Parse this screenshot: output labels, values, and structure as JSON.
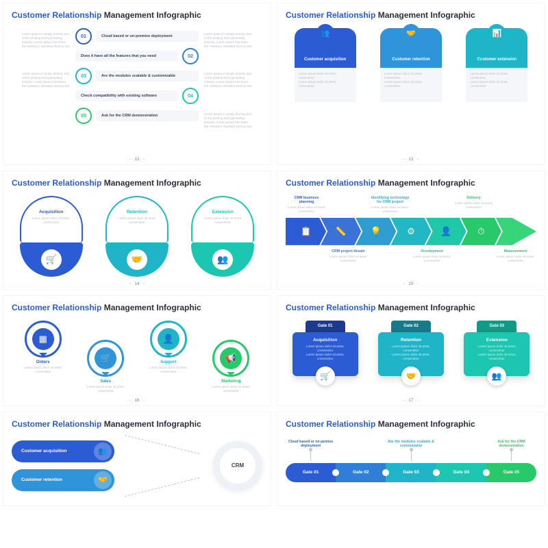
{
  "title": {
    "accent": "Customer Relationship",
    "rest": " Management Infographic"
  },
  "dummy_short": "Lorem ipsum dolor sit amet, consectetur",
  "dummy_long": "Lorem ipsum is simply dummy text of the printing and typesetting industry. Lorem Ipsum has been the industry's standard dummy text",
  "colors": {
    "c1": "#2b5cd4",
    "c2": "#2f7fd9",
    "c3": "#1fb5c9",
    "c4": "#1cc6b0",
    "c5": "#27c96a"
  },
  "s12": {
    "page": "12",
    "items": [
      {
        "num": "01",
        "label": "Cloud based or on-premise deployment",
        "color": "#2b5cd4"
      },
      {
        "num": "02",
        "label": "Does it have all the features that you need",
        "color": "#2f7fd9"
      },
      {
        "num": "03",
        "label": "Are the modules scalable & customizable",
        "color": "#1fb5c9"
      },
      {
        "num": "04",
        "label": "Check compatibility with existing software",
        "color": "#1cc6b0"
      },
      {
        "num": "05",
        "label": "Ask for the CRM demonstration",
        "color": "#27c96a"
      }
    ]
  },
  "s13": {
    "page": "13",
    "cards": [
      {
        "label": "Customer acquisition",
        "color": "#2b5cd4",
        "icon": "👥"
      },
      {
        "label": "Customer retention",
        "color": "#2f94d9",
        "icon": "🤝"
      },
      {
        "label": "Customer extension",
        "color": "#1fb5c9",
        "icon": "📊"
      }
    ]
  },
  "s14": {
    "page": "14",
    "cards": [
      {
        "label": "Acquisition",
        "color": "#2b5cd4",
        "icon": "🛒"
      },
      {
        "label": "Retention",
        "color": "#1fb5c9",
        "icon": "🤝"
      },
      {
        "label": "Extension",
        "color": "#1cc6b0",
        "icon": "👥"
      }
    ]
  },
  "s15": {
    "page": "15",
    "top": [
      {
        "label": "CRM business planning",
        "color": "#2b5cd4"
      },
      {
        "label": "Identifying technology for CRM project",
        "color": "#1fb5c9"
      },
      {
        "label": "Delivery",
        "color": "#27c96a"
      }
    ],
    "bottom": [
      {
        "label": "CRM project desain",
        "color": "#2f7fd9"
      },
      {
        "label": "Development",
        "color": "#1cc6b0"
      },
      {
        "label": "Measurement",
        "color": "#27c96a"
      }
    ],
    "segs": [
      {
        "color": "#2b5cd4",
        "icon": "📋"
      },
      {
        "color": "#3a72d8",
        "icon": "📏"
      },
      {
        "color": "#2f9dd0",
        "icon": "💡"
      },
      {
        "color": "#22b8c3",
        "icon": "⚙"
      },
      {
        "color": "#1fc9a8",
        "icon": "👤"
      },
      {
        "color": "#27c96a",
        "icon": "⏱"
      }
    ],
    "head_color": "#38d47a"
  },
  "s16": {
    "page": "16",
    "items": [
      {
        "label": "Orders",
        "color": "#2b5cd4",
        "icon": "▦",
        "down": false
      },
      {
        "label": "Sales",
        "color": "#2f94d9",
        "icon": "🛒",
        "down": true
      },
      {
        "label": "Support",
        "color": "#1fb5c9",
        "icon": "👤",
        "down": false
      },
      {
        "label": "Marketing",
        "color": "#27c96a",
        "icon": "📢",
        "down": true
      }
    ]
  },
  "s17": {
    "page": "17",
    "cards": [
      {
        "gate": "Gate 01",
        "label": "Acquisition",
        "tab": "#1d3a8f",
        "body": "#2b5cd4",
        "icon": "🛒"
      },
      {
        "gate": "Gate 02",
        "label": "Retention",
        "tab": "#167a8a",
        "body": "#1fb5c9",
        "icon": "🤝"
      },
      {
        "gate": "Gate 03",
        "label": "Extension",
        "tab": "#129a86",
        "body": "#1cc6b0",
        "icon": "👥"
      }
    ]
  },
  "s18": {
    "pills": [
      {
        "label": "Customer acquisition",
        "color": "#2b5cd4",
        "icon": "👥"
      },
      {
        "label": "Customer retention",
        "color": "#2f94d9",
        "icon": "🤝"
      }
    ],
    "center": "CRM"
  },
  "s19": {
    "labels": [
      {
        "text": "Cloud based or on-pemise deployment",
        "color": "#2b5cd4"
      },
      {
        "text": "Are the modules scalable & customizable",
        "color": "#1fb5c9"
      },
      {
        "text": "Ask for the CRM demonstration",
        "color": "#27c96a"
      }
    ],
    "pills": [
      {
        "label": "Gate 01",
        "color": "#2b5cd4"
      },
      {
        "label": "Gate 02",
        "color": "#2f7fd9"
      },
      {
        "label": "Gate 03",
        "color": "#1fb5c9"
      },
      {
        "label": "Gate 04",
        "color": "#1cc6b0"
      },
      {
        "label": "Gate 05",
        "color": "#27c96a"
      }
    ]
  }
}
